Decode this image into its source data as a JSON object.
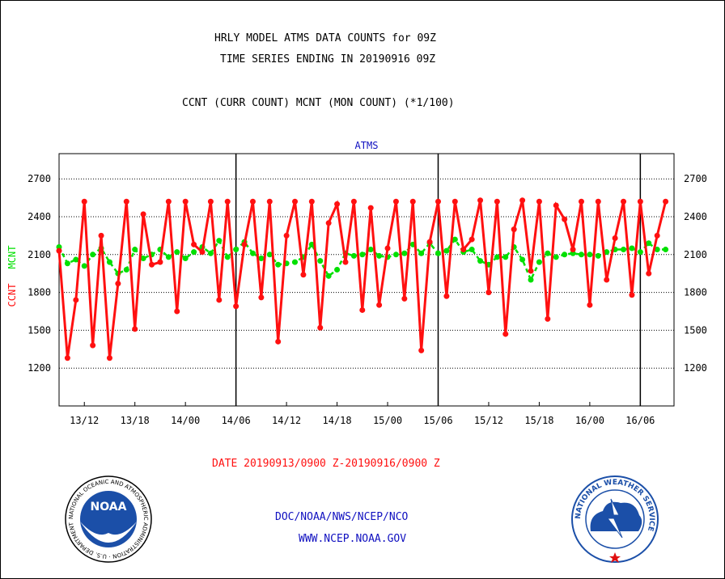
{
  "header": {
    "title_line1": "HRLY MODEL ATMS DATA COUNTS for 09Z",
    "title_line2": "TIME SERIES ENDING IN 20190916 09Z",
    "subtitle": "CCNT (CURR COUNT) MCNT (MON COUNT) (*1/100)"
  },
  "footer": {
    "date_range": "DATE 20190913/0900 Z-20190916/0900 Z",
    "org_line": "DOC/NOAA/NWS/NCEP/NCO",
    "website": "WWW.NCEP.NOAA.GOV",
    "noaa_logo_text": "NOAA",
    "noaa_ring_text": "NATIONAL OCEANIC AND ATMOSPHERIC ADMINISTRATION · U.S. DEPARTMENT OF COMMERCE",
    "nws_ring_text": "NATIONAL WEATHER SERVICE"
  },
  "colors": {
    "ccnt": "#ff1010",
    "mcnt": "#00e000",
    "label_blue": "#1010c0",
    "grid": "#000000"
  },
  "chart_data": {
    "type": "line",
    "title": "ATMS",
    "ylabel_ccnt": "CCNT",
    "ylabel_mcnt": "MCNT",
    "ylim": [
      900,
      2900
    ],
    "yticks": [
      1200,
      1500,
      1800,
      2100,
      2400,
      2700
    ],
    "xlim": [
      0,
      73
    ],
    "xticks": [
      {
        "x": 3,
        "label": "13/12"
      },
      {
        "x": 9,
        "label": "13/18"
      },
      {
        "x": 15,
        "label": "14/00"
      },
      {
        "x": 21,
        "label": "14/06"
      },
      {
        "x": 27,
        "label": "14/12"
      },
      {
        "x": 33,
        "label": "14/18"
      },
      {
        "x": 39,
        "label": "15/00"
      },
      {
        "x": 45,
        "label": "15/06"
      },
      {
        "x": 51,
        "label": "15/12"
      },
      {
        "x": 57,
        "label": "15/18"
      },
      {
        "x": 63,
        "label": "16/00"
      },
      {
        "x": 69,
        "label": "16/06"
      }
    ],
    "day_boundaries": [
      21,
      45,
      69
    ],
    "grid": true,
    "series": [
      {
        "name": "CCNT",
        "values": [
          2130,
          1280,
          1740,
          2520,
          1380,
          2250,
          1280,
          1870,
          2520,
          1510,
          2420,
          2020,
          2040,
          2520,
          1650,
          2520,
          2180,
          2120,
          2520,
          1740,
          2520,
          1690,
          2180,
          2520,
          1760,
          2520,
          1410,
          2250,
          2520,
          1940,
          2520,
          1520,
          2350,
          2500,
          2040,
          2520,
          1660,
          2470,
          1700,
          2150,
          2520,
          1750,
          2520,
          1340,
          2200,
          2520,
          1770,
          2520,
          2140,
          2220,
          2530,
          1800,
          2520,
          1470,
          2300,
          2530,
          1970,
          2520,
          1590,
          2490,
          2380,
          2140,
          2520,
          1700,
          2520,
          1900,
          2230,
          2520,
          1780,
          2520,
          1950,
          2250,
          2520
        ]
      },
      {
        "name": "MCNT",
        "values": [
          2160,
          2030,
          2060,
          2010,
          2100,
          2150,
          2040,
          1950,
          1980,
          2140,
          2070,
          2100,
          2140,
          2080,
          2120,
          2070,
          2120,
          2160,
          2110,
          2210,
          2080,
          2140,
          2200,
          2110,
          2070,
          2100,
          2020,
          2030,
          2040,
          2080,
          2180,
          2050,
          1930,
          1980,
          2110,
          2090,
          2100,
          2140,
          2090,
          2080,
          2100,
          2110,
          2180,
          2110,
          2190,
          2110,
          2130,
          2220,
          2120,
          2140,
          2050,
          2020,
          2080,
          2080,
          2160,
          2060,
          1900,
          2040,
          2110,
          2080,
          2100,
          2110,
          2100,
          2100,
          2090,
          2120,
          2140,
          2140,
          2150,
          2120,
          2190,
          2140,
          2140
        ]
      }
    ]
  }
}
